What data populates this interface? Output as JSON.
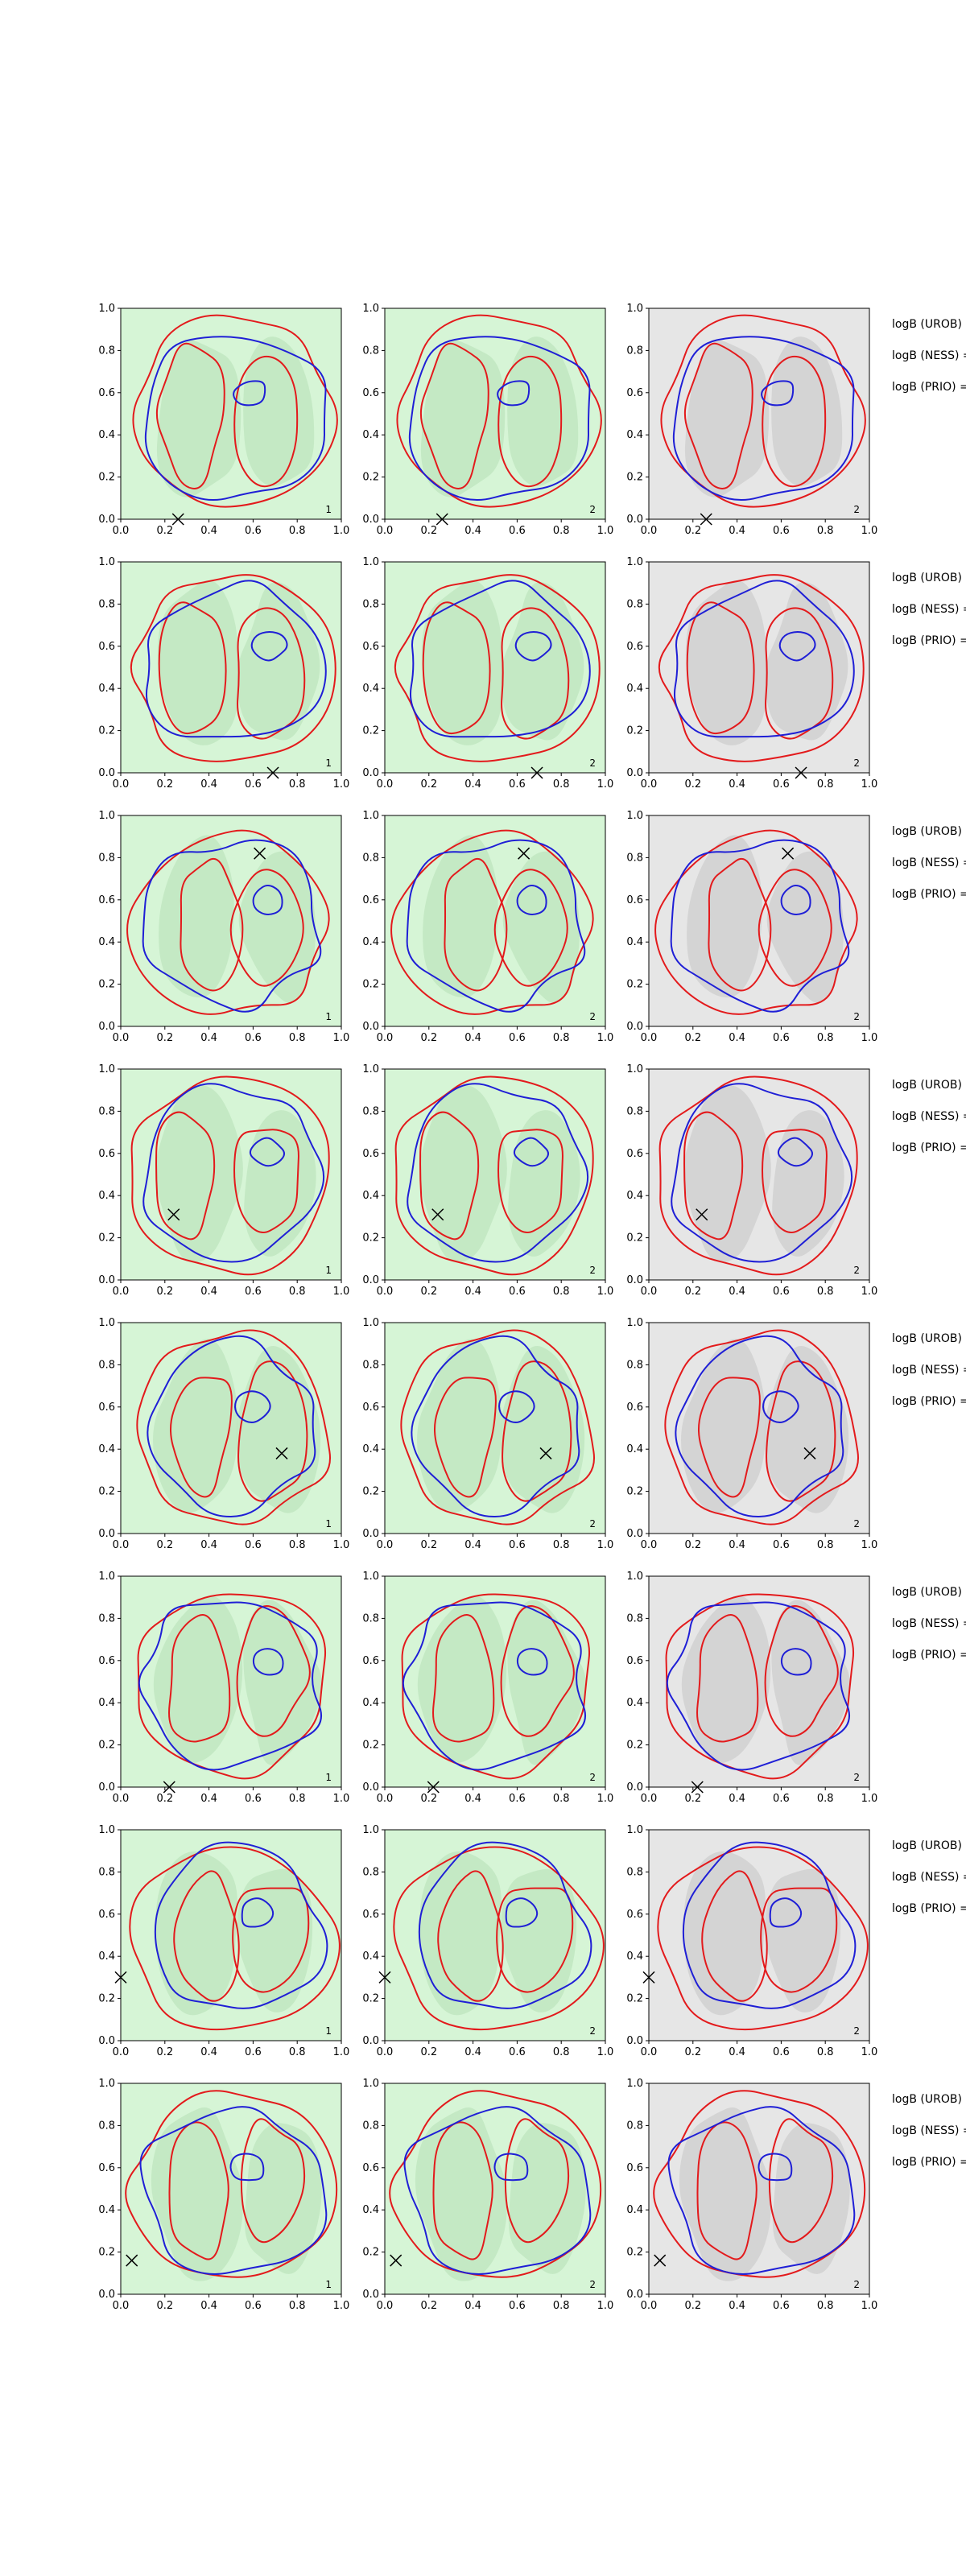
{
  "chart_data": {
    "type": "contour",
    "rows": 8,
    "cols": 3,
    "xlim": [
      0,
      1
    ],
    "ylim": [
      0,
      1
    ],
    "ticks": [
      "0.0",
      "0.2",
      "0.4",
      "0.6",
      "0.8",
      "1.0"
    ],
    "panel_labels": [
      "1",
      "2",
      "2"
    ],
    "annotation_labels": [
      "logB (UROB) =",
      "logB (NESS) =",
      "logB (PRIO) ="
    ],
    "colors": {
      "red_contour": "#e31a1c",
      "blue_contour": "#1f1fd6",
      "green_fill": "#d6f5d6",
      "green_fill_dark": "#bfe6bf",
      "gray_fill": "#e6e6e6",
      "gray_fill_dark": "#d0d0d0",
      "marker": "#000000"
    },
    "panel_backgrounds": [
      "green",
      "green",
      "gray"
    ],
    "markers": [
      {
        "row": 0,
        "x": 0.26,
        "y": 0.0
      },
      {
        "row": 1,
        "x": 0.69,
        "y": 0.0
      },
      {
        "row": 2,
        "x": 0.63,
        "y": 0.82
      },
      {
        "row": 3,
        "x": 0.24,
        "y": 0.31
      },
      {
        "row": 4,
        "x": 0.73,
        "y": 0.38
      },
      {
        "row": 5,
        "x": 0.22,
        "y": 0.0
      },
      {
        "row": 6,
        "x": 0.0,
        "y": 0.3
      },
      {
        "row": 7,
        "x": 0.05,
        "y": 0.16
      }
    ]
  }
}
